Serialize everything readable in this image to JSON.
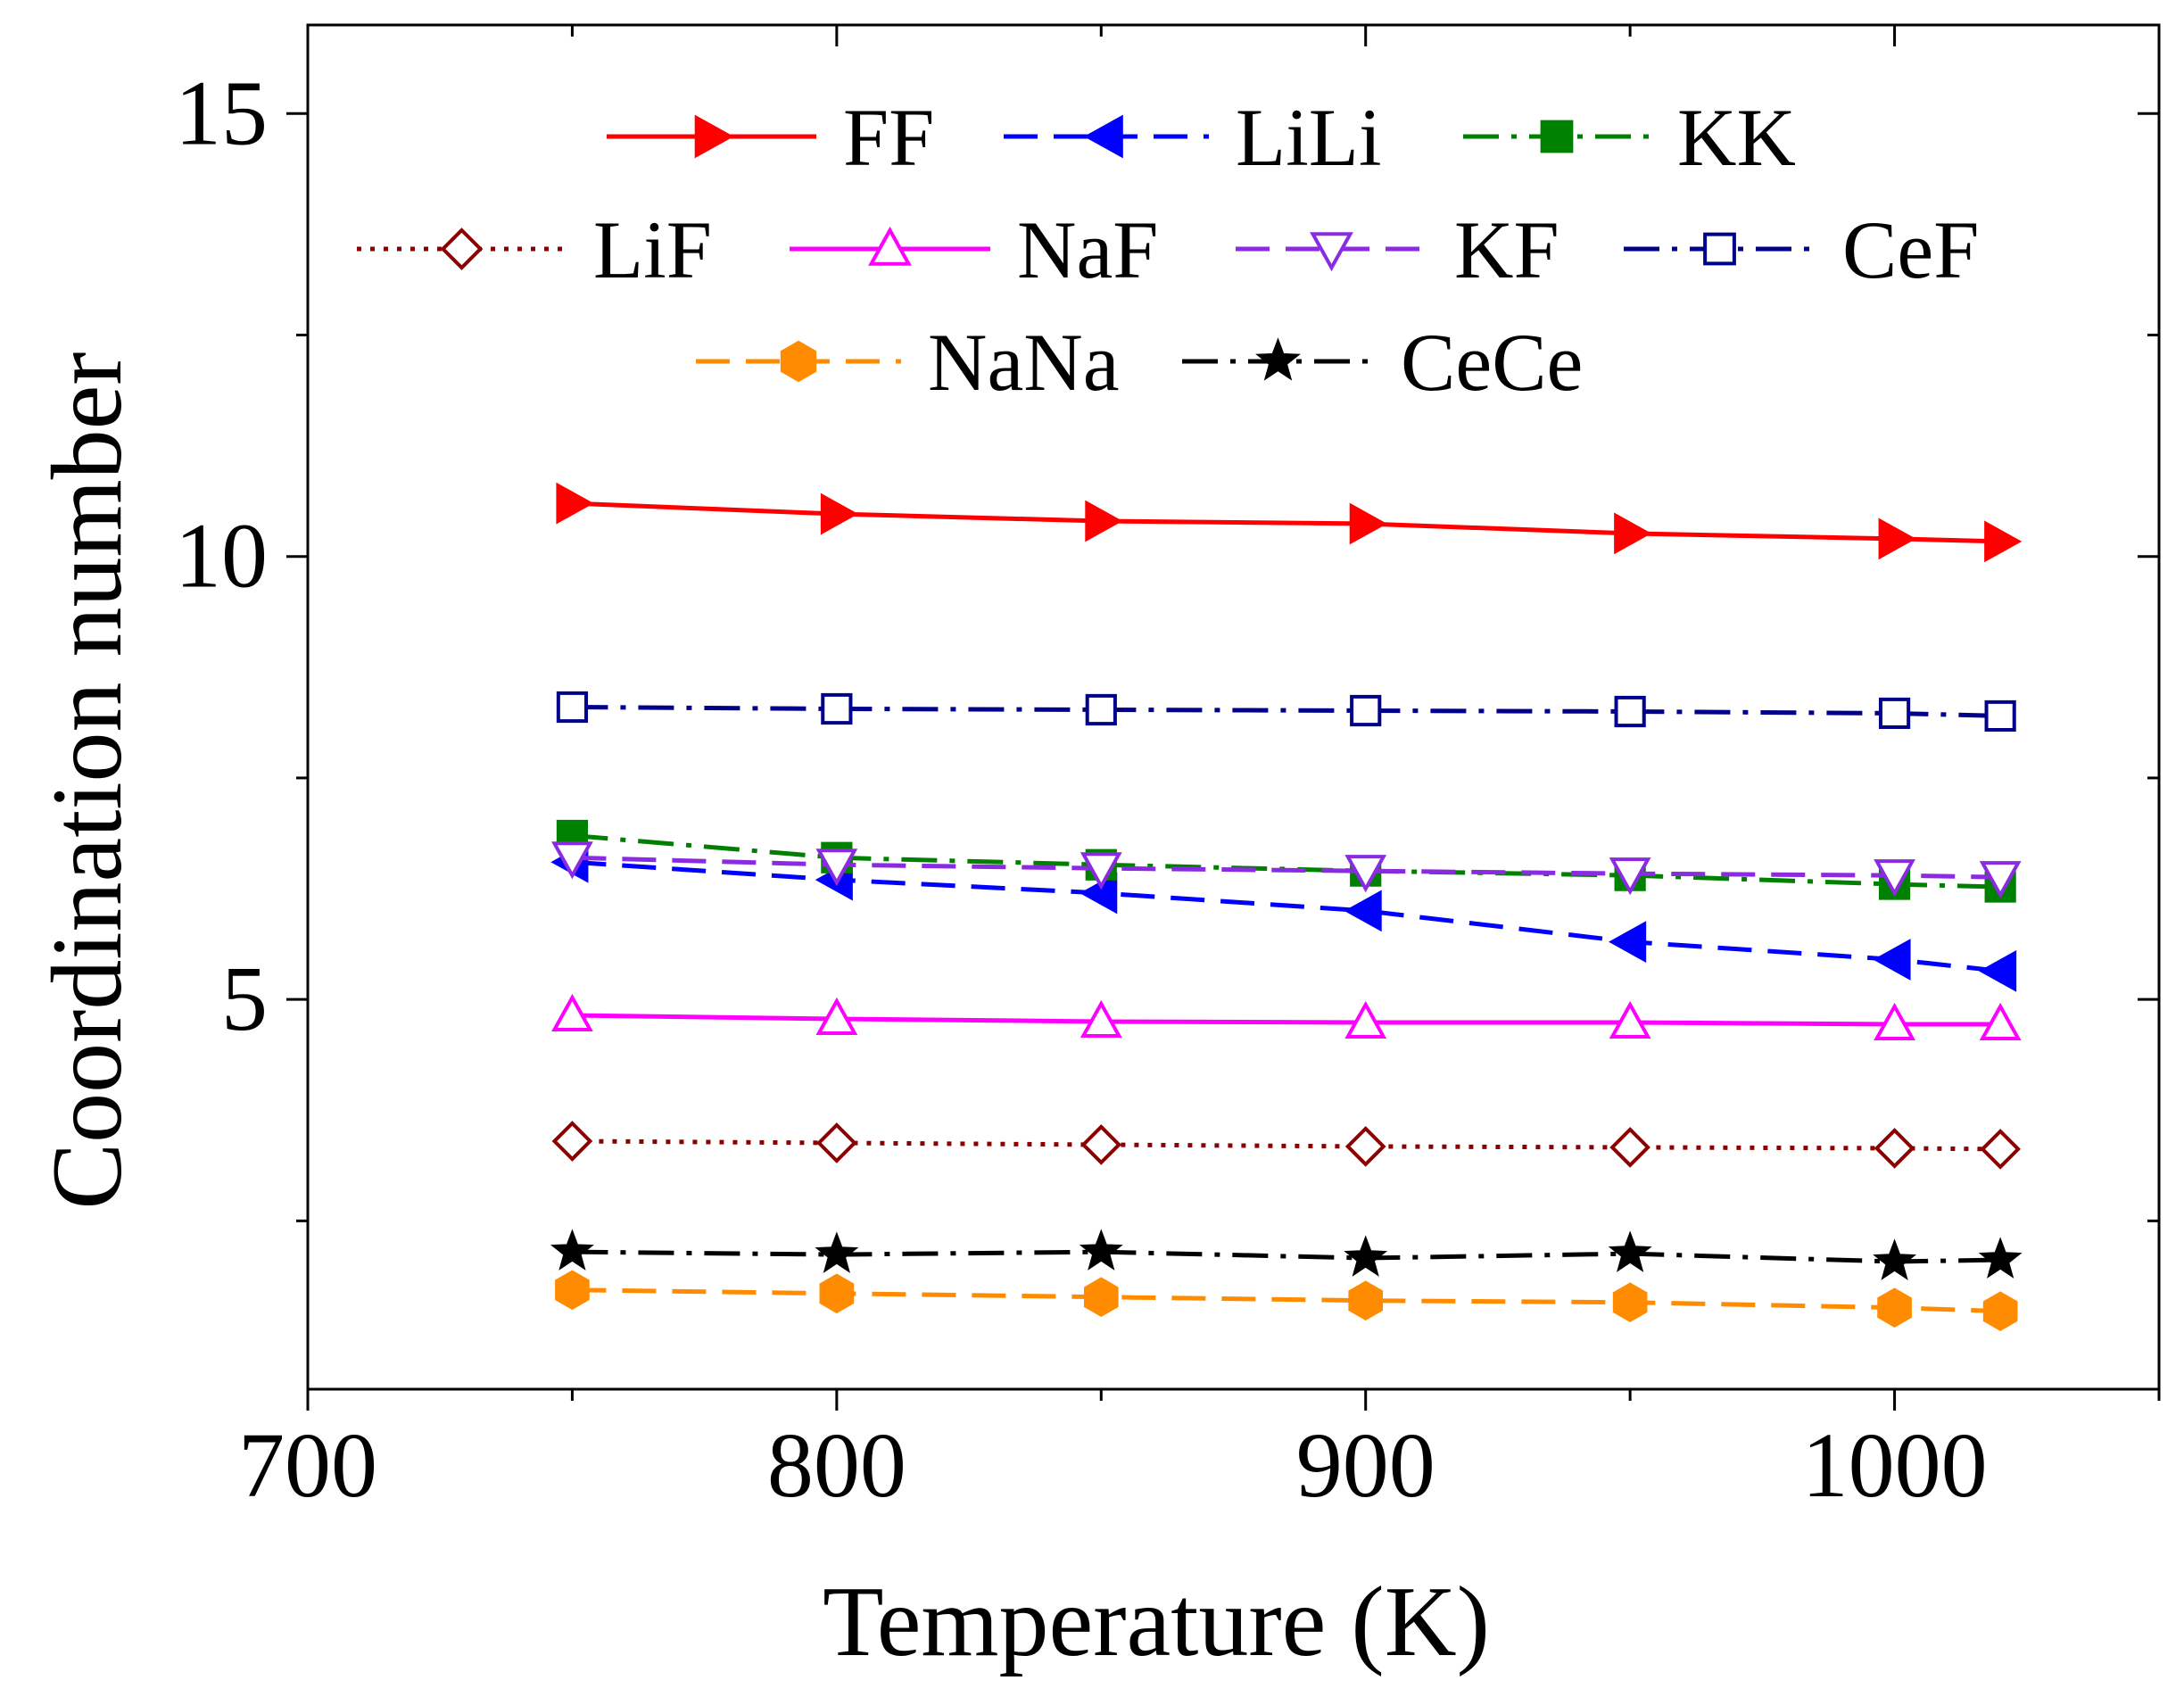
{
  "chart_data": {
    "type": "line",
    "title": "",
    "xlabel": "Temperature (K)",
    "ylabel": "Coordination number",
    "xlim": [
      700,
      1050
    ],
    "ylim": [
      0.6,
      16
    ],
    "xticks": [
      700,
      800,
      900,
      1000
    ],
    "xtick_labels": [
      "700",
      "800",
      "900",
      "1000"
    ],
    "yticks": [
      5,
      10,
      15
    ],
    "ytick_labels": [
      "5",
      "10",
      "15"
    ],
    "grid": false,
    "legend_position": "top",
    "x": [
      750,
      800,
      850,
      900,
      950,
      1000,
      1020
    ],
    "series": [
      {
        "name": "FF",
        "color": "#ff0000",
        "dash": "solid",
        "marker": "triangle-right",
        "filled": true,
        "values": [
          10.6,
          10.48,
          10.4,
          10.37,
          10.26,
          10.2,
          10.17
        ]
      },
      {
        "name": "LiLi",
        "color": "#0000ff",
        "dash": "dash",
        "marker": "triangle-left",
        "filled": true,
        "values": [
          6.55,
          6.35,
          6.2,
          6.0,
          5.65,
          5.45,
          5.32
        ]
      },
      {
        "name": "KK",
        "color": "#008000",
        "dash": "dashdot",
        "marker": "square",
        "filled": true,
        "values": [
          6.85,
          6.6,
          6.52,
          6.45,
          6.4,
          6.3,
          6.27
        ]
      },
      {
        "name": "LiF",
        "color": "#8b0000",
        "dash": "dot",
        "marker": "diamond",
        "filled": false,
        "values": [
          3.4,
          3.38,
          3.36,
          3.34,
          3.33,
          3.32,
          3.31
        ]
      },
      {
        "name": "NaF",
        "color": "#ff00ff",
        "dash": "solid",
        "marker": "triangle-up",
        "filled": false,
        "values": [
          4.82,
          4.78,
          4.75,
          4.74,
          4.74,
          4.72,
          4.72
        ]
      },
      {
        "name": "KF",
        "color": "#8a2be2",
        "dash": "dash",
        "marker": "triangle-down",
        "filled": false,
        "values": [
          6.6,
          6.52,
          6.48,
          6.45,
          6.42,
          6.4,
          6.38
        ]
      },
      {
        "name": "CeF",
        "color": "#00008b",
        "dash": "dashdot",
        "marker": "square",
        "filled": false,
        "values": [
          8.3,
          8.28,
          8.27,
          8.26,
          8.25,
          8.23,
          8.2
        ]
      },
      {
        "name": "NaNa",
        "color": "#ff8c00",
        "dash": "dash",
        "marker": "hexagon",
        "filled": true,
        "values": [
          1.72,
          1.68,
          1.64,
          1.6,
          1.58,
          1.52,
          1.48
        ]
      },
      {
        "name": "CeCe",
        "color": "#000000",
        "dash": "dashdot",
        "marker": "star",
        "filled": true,
        "values": [
          2.15,
          2.12,
          2.15,
          2.08,
          2.13,
          2.04,
          2.06
        ]
      }
    ]
  }
}
